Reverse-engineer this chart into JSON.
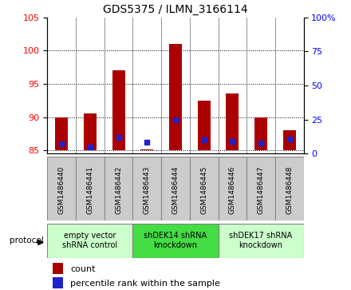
{
  "title": "GDS5375 / ILMN_3166114",
  "samples": [
    "GSM1486440",
    "GSM1486441",
    "GSM1486442",
    "GSM1486443",
    "GSM1486444",
    "GSM1486445",
    "GSM1486446",
    "GSM1486447",
    "GSM1486448"
  ],
  "count_values": [
    90.0,
    90.5,
    97.0,
    85.1,
    101.0,
    92.5,
    93.5,
    90.0,
    88.0
  ],
  "percentile_values": [
    7.0,
    5.0,
    12.0,
    8.5,
    25.0,
    10.0,
    9.0,
    8.0,
    11.0
  ],
  "bar_bottom": 85.0,
  "ylim_left": [
    84.5,
    105
  ],
  "ylim_right": [
    0,
    100
  ],
  "yticks_left": [
    85,
    90,
    95,
    100,
    105
  ],
  "yticks_right": [
    0,
    25,
    50,
    75,
    100
  ],
  "bar_color": "#AA0000",
  "percentile_color": "#2222CC",
  "protocol_groups": [
    {
      "label": "empty vector\nshRNA control",
      "start": 0,
      "end": 3,
      "color": "#CCFFCC"
    },
    {
      "label": "shDEK14 shRNA\nknockdown",
      "start": 3,
      "end": 6,
      "color": "#44DD44"
    },
    {
      "label": "shDEK17 shRNA\nknockdown",
      "start": 6,
      "end": 9,
      "color": "#CCFFCC"
    }
  ],
  "bar_width": 0.45,
  "label_box_color": "#CCCCCC",
  "label_box_edge": "#888888"
}
